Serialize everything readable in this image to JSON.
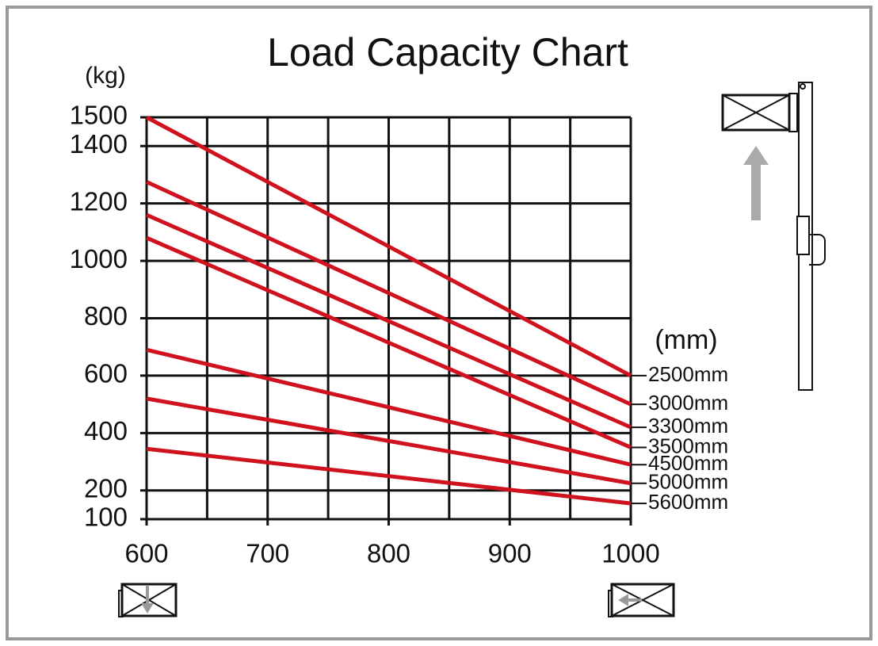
{
  "chart_data": {
    "type": "line",
    "title": "Load Capacity Chart",
    "y_unit": "(kg)",
    "series_unit": "(mm)",
    "x": [
      600,
      1000
    ],
    "series": [
      {
        "name": "2500mm",
        "color": "#d0121e",
        "values": [
          1500,
          600
        ]
      },
      {
        "name": "3000mm",
        "color": "#d0121e",
        "values": [
          1275,
          500
        ]
      },
      {
        "name": "3300mm",
        "color": "#d0121e",
        "values": [
          1160,
          420
        ]
      },
      {
        "name": "3500mm",
        "color": "#d0121e",
        "values": [
          1080,
          350
        ]
      },
      {
        "name": "4500mm",
        "color": "#d0121e",
        "values": [
          690,
          290
        ]
      },
      {
        "name": "5000mm",
        "color": "#d0121e",
        "values": [
          520,
          225
        ]
      },
      {
        "name": "5600mm",
        "color": "#d0121e",
        "values": [
          345,
          155
        ]
      }
    ],
    "xlim": [
      600,
      1000
    ],
    "xticks": [
      600,
      700,
      800,
      900,
      1000
    ],
    "ylim": [
      100,
      1500
    ],
    "yticks": [
      100,
      200,
      400,
      600,
      800,
      1000,
      1200,
      1400,
      1500
    ],
    "grid": true
  }
}
